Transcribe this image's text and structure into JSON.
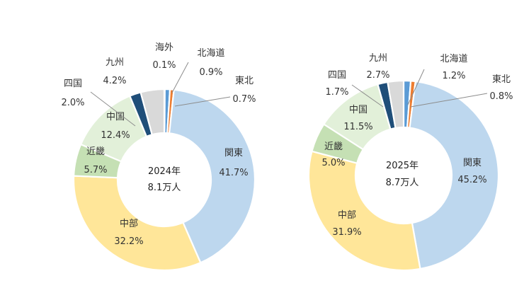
{
  "chart_data": [
    {
      "type": "pie",
      "donut": true,
      "center_label": [
        "2024年",
        "8.1万人"
      ],
      "slices": [
        {
          "name": "関東",
          "value": 41.7,
          "label": "41.7%",
          "color": "#bdd7ee"
        },
        {
          "name": "中部",
          "value": 32.2,
          "label": "32.2%",
          "color": "#ffe699"
        },
        {
          "name": "近畿",
          "value": 5.7,
          "label": "5.7%",
          "color": "#c5e0b4"
        },
        {
          "name": "中国",
          "value": 12.4,
          "label": "12.4%",
          "color": "#e2f0d9"
        },
        {
          "name": "四国",
          "value": 2.0,
          "label": "2.0%",
          "color": "#1f4e79"
        },
        {
          "name": "九州",
          "value": 4.2,
          "label": "4.2%",
          "color": "#d9d9d9"
        },
        {
          "name": "海外",
          "value": 0.1,
          "label": "0.1%",
          "color": "#a6a6a6"
        },
        {
          "name": "北海道",
          "value": 0.9,
          "label": "0.9%",
          "color": "#5b9bd5"
        },
        {
          "name": "東北",
          "value": 0.7,
          "label": "0.7%",
          "color": "#ed7d31"
        }
      ]
    },
    {
      "type": "pie",
      "donut": true,
      "center_label": [
        "2025年",
        "8.7万人"
      ],
      "slices": [
        {
          "name": "関東",
          "value": 45.2,
          "label": "45.2%",
          "color": "#bdd7ee"
        },
        {
          "name": "中部",
          "value": 31.9,
          "label": "31.9%",
          "color": "#ffe699"
        },
        {
          "name": "近畿",
          "value": 5.0,
          "label": "5.0%",
          "color": "#c5e0b4"
        },
        {
          "name": "中国",
          "value": 11.5,
          "label": "11.5%",
          "color": "#e2f0d9"
        },
        {
          "name": "四国",
          "value": 1.7,
          "label": "1.7%",
          "color": "#1f4e79"
        },
        {
          "name": "九州",
          "value": 2.7,
          "label": "2.7%",
          "color": "#d9d9d9"
        },
        {
          "name": "北海道",
          "value": 1.2,
          "label": "1.2%",
          "color": "#5b9bd5"
        },
        {
          "name": "東北",
          "value": 0.8,
          "label": "0.8%",
          "color": "#ed7d31"
        }
      ]
    }
  ]
}
